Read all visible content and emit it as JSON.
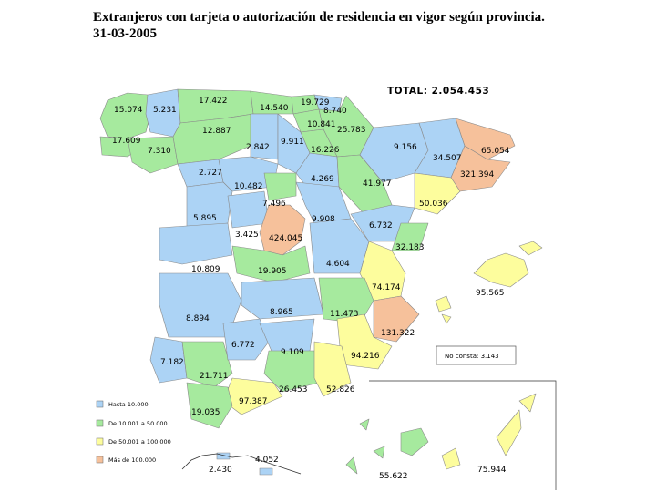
{
  "title": {
    "line1": "Extranjeros con tarjeta o autorización de residencia en vigor según provincia.",
    "line2": "31-03-2005"
  },
  "total_label": "TOTAL:  2.054.453",
  "colors": {
    "hasta_10000": "#acd3f5",
    "de_10001_a_50000": "#a6ea9e",
    "de_50001_a_100000": "#fdfd9d",
    "mas_de_100000": "#f6c19b",
    "border": "#7f7f7f"
  },
  "legend": [
    {
      "label": "Hasta 10.000",
      "color": "#acd3f5"
    },
    {
      "label": "De 10.001 a 50.000",
      "color": "#a6ea9e"
    },
    {
      "label": "De 50.001 a 100.000",
      "color": "#fdfd9d"
    },
    {
      "label": "Más de 100.000",
      "color": "#f6c19b"
    }
  ],
  "no_consta": "No consta: 3.143",
  "province_values": [
    "15.074",
    "5.231",
    "17.422",
    "14.540",
    "19.729",
    "8.740",
    "10.841",
    "25.783",
    "12.887",
    "17.609",
    "7.310",
    "2.842",
    "9.911",
    "16.226",
    "9.156",
    "34.507",
    "65.054",
    "321.394",
    "2.727",
    "10.482",
    "4.269",
    "41.977",
    "7.496",
    "50.036",
    "5.895",
    "9.908",
    "6.732",
    "3.425",
    "424.045",
    "32.183",
    "10.809",
    "19.905",
    "4.604",
    "74.174",
    "95.565",
    "8.894",
    "8.965",
    "11.473",
    "131.322",
    "6.772",
    "9.109",
    "94.216",
    "7.182",
    "21.711",
    "26.453",
    "52.826",
    "97.387",
    "19.035",
    "4.052",
    "2.430",
    "55.622",
    "75.944"
  ]
}
